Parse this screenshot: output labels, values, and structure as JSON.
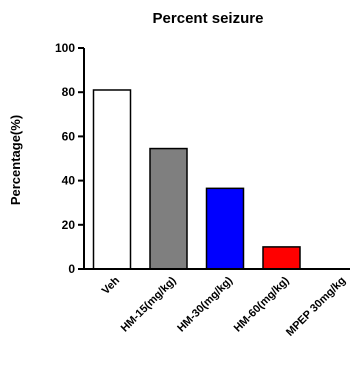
{
  "chart_data": {
    "type": "bar",
    "title": "Percent seizure",
    "xlabel": "",
    "ylabel": "Percentage(%)",
    "ylim": [
      0,
      100
    ],
    "yticks": [
      "0",
      "20",
      "40",
      "60",
      "80",
      "100"
    ],
    "grid": false,
    "categories": [
      "Veh",
      "HM-15(mg/kg)",
      "HM-30(mg/kg)",
      "HM-60(mg/kg)",
      "MPEP 30mg/kg"
    ],
    "values": [
      81,
      54.5,
      36.5,
      10,
      0
    ],
    "colors": [
      "#ffffff",
      "#7f7f7f",
      "#0000ff",
      "#ff0000",
      "#ffffff"
    ]
  }
}
